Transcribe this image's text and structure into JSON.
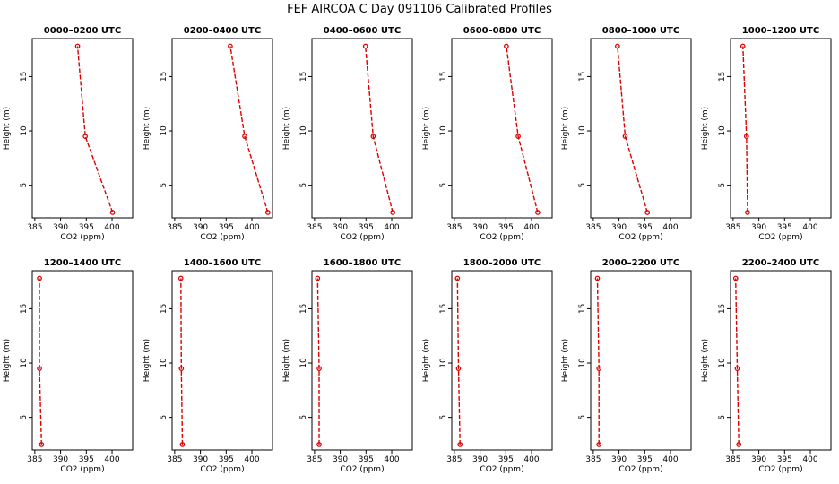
{
  "title": "FEF AIRCOA C  Day 091106  Calibrated Profiles",
  "chart_data": [
    {
      "type": "line",
      "title": "0000–0200 UTC",
      "xlabel": "CO2 (ppm)",
      "ylabel": "Height (m)",
      "xlim": [
        384.5,
        404
      ],
      "ylim": [
        2,
        18.5
      ],
      "x": [
        400.1,
        394.8,
        393.3
      ],
      "y": [
        2.5,
        9.5,
        17.8
      ],
      "xticks": [
        "385",
        "390",
        "395",
        "400"
      ],
      "yticks": [
        "5",
        "10",
        "15"
      ]
    },
    {
      "type": "line",
      "title": "0200–0400 UTC",
      "xlabel": "CO2 (ppm)",
      "ylabel": "Height (m)",
      "xlim": [
        384.5,
        404
      ],
      "ylim": [
        2,
        18.5
      ],
      "x": [
        403.1,
        398.6,
        395.8
      ],
      "y": [
        2.5,
        9.5,
        17.8
      ],
      "xticks": [
        "385",
        "390",
        "395",
        "400"
      ],
      "yticks": [
        "5",
        "10",
        "15"
      ]
    },
    {
      "type": "line",
      "title": "0400–0600 UTC",
      "xlabel": "CO2 (ppm)",
      "ylabel": "Height (m)",
      "xlim": [
        384.5,
        404
      ],
      "ylim": [
        2,
        18.5
      ],
      "x": [
        400.2,
        396.4,
        394.9
      ],
      "y": [
        2.5,
        9.5,
        17.8
      ],
      "xticks": [
        "385",
        "390",
        "395",
        "400"
      ],
      "yticks": [
        "5",
        "10",
        "15"
      ]
    },
    {
      "type": "line",
      "title": "0600–0800 UTC",
      "xlabel": "CO2 (ppm)",
      "ylabel": "Height (m)",
      "xlim": [
        384.5,
        404
      ],
      "ylim": [
        2,
        18.5
      ],
      "x": [
        401.2,
        397.4,
        395.1
      ],
      "y": [
        2.5,
        9.5,
        17.8
      ],
      "xticks": [
        "385",
        "390",
        "395",
        "400"
      ],
      "yticks": [
        "5",
        "10",
        "15"
      ]
    },
    {
      "type": "line",
      "title": "0800–1000 UTC",
      "xlabel": "CO2 (ppm)",
      "ylabel": "Height (m)",
      "xlim": [
        384.5,
        404
      ],
      "ylim": [
        2,
        18.5
      ],
      "x": [
        395.5,
        391.2,
        389.7
      ],
      "y": [
        2.5,
        9.5,
        17.8
      ],
      "xticks": [
        "385",
        "390",
        "395",
        "400"
      ],
      "yticks": [
        "5",
        "10",
        "15"
      ]
    },
    {
      "type": "line",
      "title": "1000–1200 UTC",
      "xlabel": "CO2 (ppm)",
      "ylabel": "Height (m)",
      "xlim": [
        384.5,
        404
      ],
      "ylim": [
        2,
        18.5
      ],
      "x": [
        387.8,
        387.6,
        386.9
      ],
      "y": [
        2.5,
        9.5,
        17.8
      ],
      "xticks": [
        "385",
        "390",
        "395",
        "400"
      ],
      "yticks": [
        "5",
        "10",
        "15"
      ]
    },
    {
      "type": "line",
      "title": "1200–1400 UTC",
      "xlabel": "CO2 (ppm)",
      "ylabel": "Height (m)",
      "xlim": [
        384.5,
        404
      ],
      "ylim": [
        2,
        18.5
      ],
      "x": [
        386.3,
        385.9,
        385.9
      ],
      "y": [
        2.5,
        9.5,
        17.8
      ],
      "xticks": [
        "385",
        "390",
        "395",
        "400"
      ],
      "yticks": [
        "5",
        "10",
        "15"
      ]
    },
    {
      "type": "line",
      "title": "1400–1600 UTC",
      "xlabel": "CO2 (ppm)",
      "ylabel": "Height (m)",
      "xlim": [
        384.5,
        404
      ],
      "ylim": [
        2,
        18.5
      ],
      "x": [
        386.5,
        386.3,
        386.2
      ],
      "y": [
        2.5,
        9.5,
        17.8
      ],
      "xticks": [
        "385",
        "390",
        "395",
        "400"
      ],
      "yticks": [
        "5",
        "10",
        "15"
      ]
    },
    {
      "type": "line",
      "title": "1600–1800 UTC",
      "xlabel": "CO2 (ppm)",
      "ylabel": "Height (m)",
      "xlim": [
        384.5,
        404
      ],
      "ylim": [
        2,
        18.5
      ],
      "x": [
        385.9,
        385.9,
        385.6
      ],
      "y": [
        2.5,
        9.5,
        17.8
      ],
      "xticks": [
        "385",
        "390",
        "395",
        "400"
      ],
      "yticks": [
        "5",
        "10",
        "15"
      ]
    },
    {
      "type": "line",
      "title": "1800–2000 UTC",
      "xlabel": "CO2 (ppm)",
      "ylabel": "Height (m)",
      "xlim": [
        384.5,
        404
      ],
      "ylim": [
        2,
        18.5
      ],
      "x": [
        386.1,
        385.8,
        385.6
      ],
      "y": [
        2.5,
        9.5,
        17.8
      ],
      "xticks": [
        "385",
        "390",
        "395",
        "400"
      ],
      "yticks": [
        "5",
        "10",
        "15"
      ]
    },
    {
      "type": "line",
      "title": "2000–2200 UTC",
      "xlabel": "CO2 (ppm)",
      "ylabel": "Height (m)",
      "xlim": [
        384.5,
        404
      ],
      "ylim": [
        2,
        18.5
      ],
      "x": [
        386.1,
        386.1,
        385.8
      ],
      "y": [
        2.5,
        9.5,
        17.8
      ],
      "xticks": [
        "385",
        "390",
        "395",
        "400"
      ],
      "yticks": [
        "5",
        "10",
        "15"
      ]
    },
    {
      "type": "line",
      "title": "2200–2400 UTC",
      "xlabel": "CO2 (ppm)",
      "ylabel": "Height (m)",
      "xlim": [
        384.5,
        404
      ],
      "ylim": [
        2,
        18.5
      ],
      "x": [
        386.1,
        385.8,
        385.5
      ],
      "y": [
        2.5,
        9.5,
        17.8
      ],
      "xticks": [
        "385",
        "390",
        "395",
        "400"
      ],
      "yticks": [
        "5",
        "10",
        "15"
      ]
    }
  ],
  "colors": {
    "line": "#dd0000",
    "axis": "#000000",
    "background": "#ffffff"
  }
}
